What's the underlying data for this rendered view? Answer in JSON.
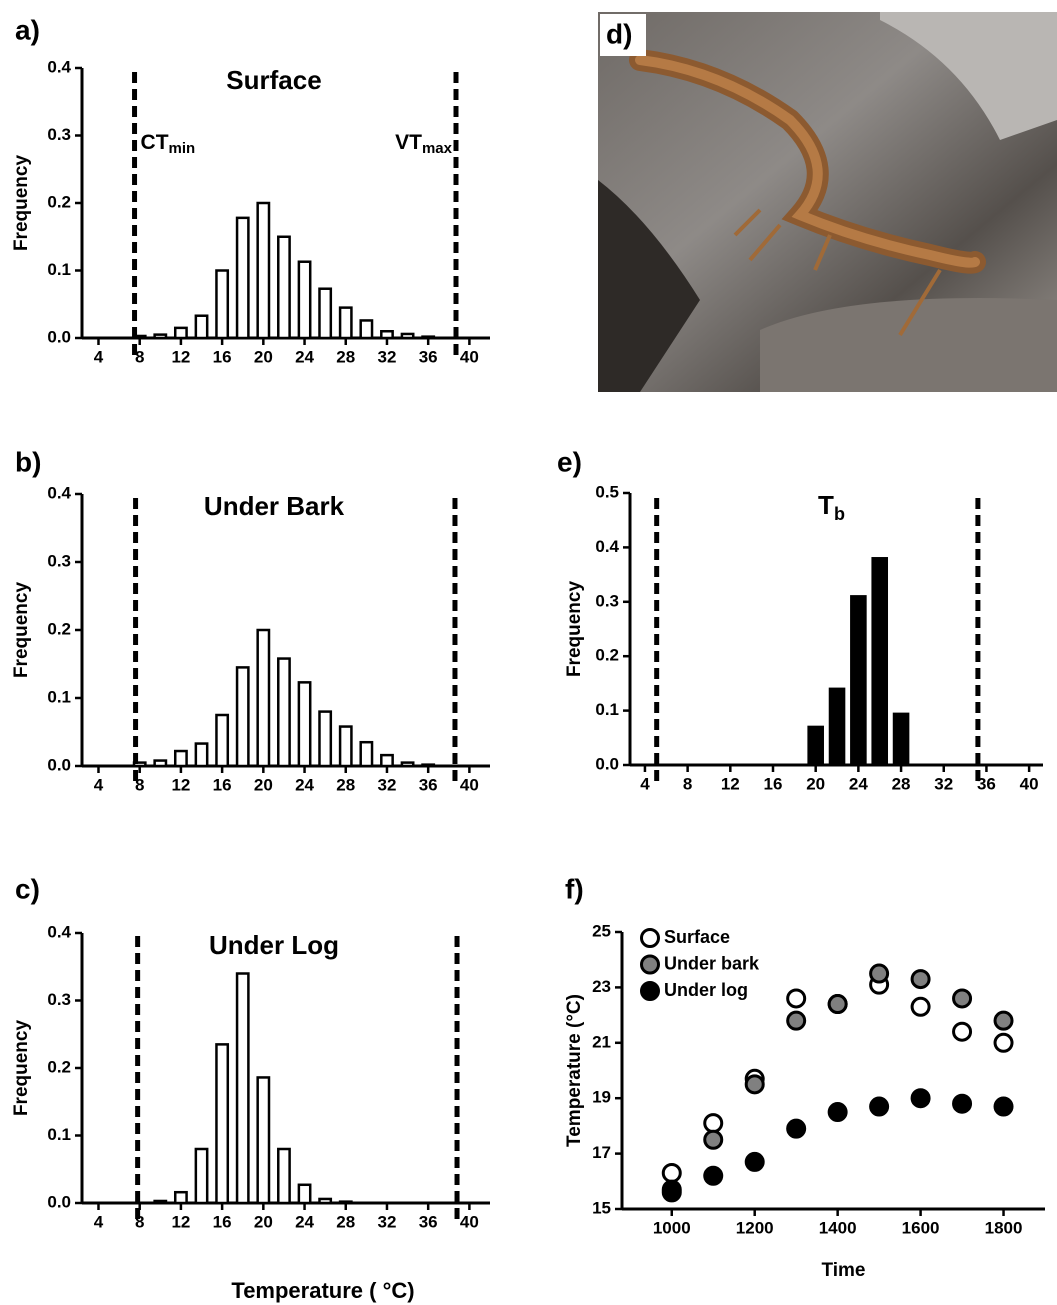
{
  "chart_data": [
    {
      "type": "bar",
      "panel_label": "a)",
      "title": "Surface",
      "ylabel": "Frequency",
      "color": "#ffffff",
      "x": [
        8,
        10,
        12,
        14,
        16,
        18,
        20,
        22,
        24,
        26,
        28,
        30,
        32,
        34,
        36
      ],
      "values": [
        0.003,
        0.005,
        0.015,
        0.033,
        0.1,
        0.178,
        0.2,
        0.15,
        0.113,
        0.073,
        0.045,
        0.026,
        0.01,
        0.006,
        0.002
      ],
      "xlim": [
        2.4,
        42
      ],
      "xticks": [
        4,
        8,
        12,
        16,
        20,
        24,
        28,
        32,
        36,
        40
      ],
      "ylim": [
        0,
        0.4
      ],
      "yticks": [
        {
          "value": 0,
          "label": "0.0"
        },
        0.1,
        0.2,
        0.3,
        0.4
      ],
      "vlines": [
        7.5,
        38.7
      ],
      "annotations": [
        {
          "text": "CT",
          "subscript": "min"
        },
        {
          "text": "VT",
          "subscript": "max"
        }
      ]
    },
    {
      "type": "bar",
      "panel_label": "b)",
      "title": "Under Bark",
      "ylabel": "Frequency",
      "color": "#ffffff",
      "x": [
        8,
        10,
        12,
        14,
        16,
        18,
        20,
        22,
        24,
        26,
        28,
        30,
        32,
        34,
        36
      ],
      "values": [
        0.005,
        0.008,
        0.022,
        0.033,
        0.075,
        0.145,
        0.2,
        0.158,
        0.123,
        0.08,
        0.058,
        0.035,
        0.016,
        0.005,
        0.002
      ],
      "xlim": [
        2.4,
        42
      ],
      "xticks": [
        4,
        8,
        12,
        16,
        20,
        24,
        28,
        32,
        36,
        40
      ],
      "ylim": [
        0,
        0.4
      ],
      "yticks": [
        {
          "value": 0,
          "label": "0.0"
        },
        0.1,
        0.2,
        0.3,
        0.4
      ],
      "vlines": [
        7.6,
        38.6
      ]
    },
    {
      "type": "bar",
      "panel_label": "c)",
      "title": "Under Log",
      "ylabel": "Frequency",
      "color": "#ffffff",
      "x": [
        10,
        12,
        14,
        16,
        18,
        20,
        22,
        24,
        26,
        28
      ],
      "values": [
        0.003,
        0.016,
        0.08,
        0.235,
        0.34,
        0.186,
        0.08,
        0.027,
        0.006,
        0.002
      ],
      "xlim": [
        2.4,
        42
      ],
      "xticks": [
        4,
        8,
        12,
        16,
        20,
        24,
        28,
        32,
        36,
        40
      ],
      "ylim": [
        0,
        0.4
      ],
      "yticks": [
        {
          "value": 0,
          "label": "0.0"
        },
        0.1,
        0.2,
        0.3,
        0.4
      ],
      "vlines": [
        7.8,
        38.8
      ]
    },
    {
      "type": "bar",
      "panel_label": "e)",
      "title": "T",
      "title_subscript": "b",
      "ylabel": "Frequency",
      "color": "#000000",
      "x": [
        20,
        22,
        24,
        26,
        28
      ],
      "values": [
        0.07,
        0.14,
        0.31,
        0.38,
        0.094
      ],
      "xlim": [
        2.6,
        41.3
      ],
      "xticks": [
        4,
        8,
        12,
        16,
        20,
        24,
        28,
        32,
        36,
        40
      ],
      "ylim": [
        0,
        0.5
      ],
      "yticks": [
        {
          "value": 0,
          "label": "0.0"
        },
        0.1,
        0.2,
        0.3,
        0.4,
        0.5
      ],
      "vlines": [
        5.1,
        35.2
      ]
    },
    {
      "type": "scatter",
      "panel_label": "f)",
      "xlabel": "Time",
      "ylabel": "Temperature (°C)",
      "x": [
        1000,
        1100,
        1200,
        1300,
        1400,
        1500,
        1600,
        1700,
        1800
      ],
      "series": [
        {
          "name": "Surface",
          "color": "#ffffff",
          "values": [
            16.3,
            18.1,
            19.7,
            22.6,
            22.4,
            23.1,
            22.3,
            21.4,
            21.0
          ]
        },
        {
          "name": "Under bark",
          "color": "#808080",
          "values": [
            15.7,
            17.5,
            19.5,
            21.8,
            22.4,
            23.5,
            23.3,
            22.6,
            21.8
          ]
        },
        {
          "name": "Under log",
          "color": "#000000",
          "values": [
            15.6,
            16.2,
            16.7,
            17.9,
            18.5,
            18.7,
            19.0,
            18.8,
            18.7
          ]
        }
      ],
      "xlim": [
        880,
        1900
      ],
      "xticks": [
        1000,
        1200,
        1400,
        1600,
        1800
      ],
      "ylim": [
        15,
        25
      ],
      "yticks": [
        15,
        17,
        19,
        21,
        23,
        25
      ],
      "legend": "upper left"
    }
  ],
  "photo": {
    "panel_label": "d)"
  },
  "shared_xlabel": "Temperature ( °C)"
}
